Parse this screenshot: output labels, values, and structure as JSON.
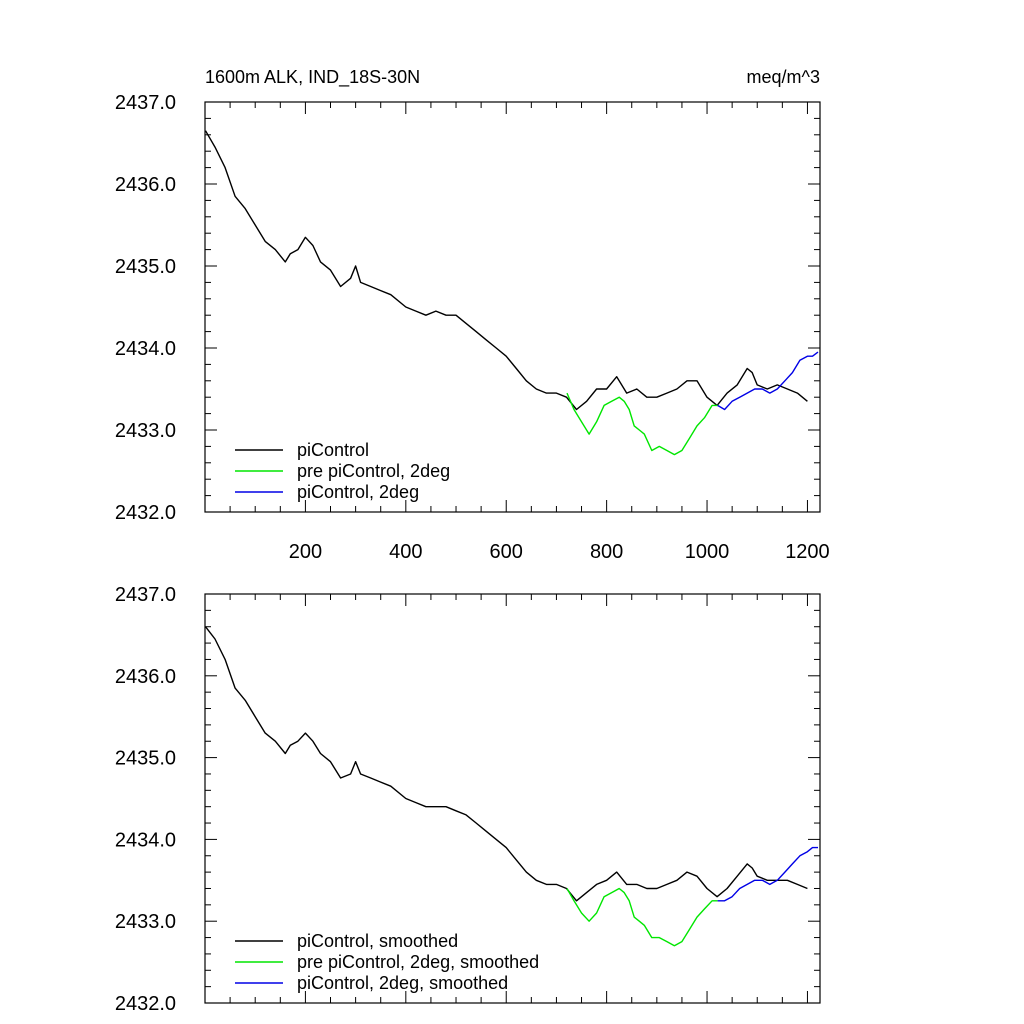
{
  "chart_data": [
    {
      "type": "line",
      "title": "1600m ALK, IND_18S-30N",
      "units": "meq/m^3",
      "xlim": [
        0,
        1225
      ],
      "ylim": [
        2432.0,
        2437.0
      ],
      "x_ticks": [
        200,
        400,
        600,
        800,
        1000,
        1200
      ],
      "x_tick_labels": [
        "200",
        "400",
        "600",
        "800",
        "1000",
        "1200"
      ],
      "y_ticks": [
        2432.0,
        2433.0,
        2434.0,
        2435.0,
        2436.0,
        2437.0
      ],
      "y_tick_labels": [
        "2432.0",
        "2433.0",
        "2434.0",
        "2435.0",
        "2436.0",
        "2437.0"
      ],
      "legend_position": "bottom-left",
      "series": [
        {
          "name": "piControl",
          "color": "#000000",
          "x": [
            1,
            20,
            40,
            60,
            80,
            100,
            120,
            140,
            160,
            170,
            185,
            200,
            215,
            230,
            250,
            270,
            290,
            300,
            310,
            330,
            350,
            370,
            400,
            420,
            440,
            460,
            480,
            500,
            520,
            540,
            560,
            580,
            600,
            620,
            640,
            660,
            680,
            700,
            720,
            740,
            760,
            780,
            800,
            820,
            840,
            860,
            880,
            900,
            920,
            940,
            960,
            980,
            1000,
            1020,
            1040,
            1060,
            1080,
            1090,
            1100,
            1120,
            1140,
            1160,
            1180,
            1200
          ],
          "values": [
            2436.65,
            2436.45,
            2436.2,
            2435.85,
            2435.7,
            2435.5,
            2435.3,
            2435.2,
            2435.05,
            2435.15,
            2435.2,
            2435.35,
            2435.25,
            2435.05,
            2434.95,
            2434.75,
            2434.85,
            2435.0,
            2434.8,
            2434.75,
            2434.7,
            2434.65,
            2434.5,
            2434.45,
            2434.4,
            2434.45,
            2434.4,
            2434.4,
            2434.3,
            2434.2,
            2434.1,
            2434.0,
            2433.9,
            2433.75,
            2433.6,
            2433.5,
            2433.45,
            2433.45,
            2433.4,
            2433.25,
            2433.35,
            2433.5,
            2433.5,
            2433.65,
            2433.45,
            2433.5,
            2433.4,
            2433.4,
            2433.45,
            2433.5,
            2433.6,
            2433.6,
            2433.4,
            2433.3,
            2433.45,
            2433.55,
            2433.75,
            2433.7,
            2433.55,
            2433.5,
            2433.55,
            2433.5,
            2433.45,
            2433.35
          ]
        },
        {
          "name": "pre piControl, 2deg",
          "color": "#00e600",
          "x": [
            721,
            735,
            750,
            765,
            780,
            795,
            810,
            825,
            835,
            845,
            855,
            865,
            875,
            890,
            905,
            920,
            935,
            950,
            965,
            980,
            995,
            1010,
            1021
          ],
          "values": [
            2433.45,
            2433.25,
            2433.1,
            2432.95,
            2433.1,
            2433.3,
            2433.35,
            2433.4,
            2433.35,
            2433.25,
            2433.05,
            2433.0,
            2432.95,
            2432.75,
            2432.8,
            2432.75,
            2432.7,
            2432.75,
            2432.9,
            2433.05,
            2433.15,
            2433.3,
            2433.3
          ]
        },
        {
          "name": "piControl, 2deg",
          "color": "#0000e6",
          "x": [
            1021,
            1035,
            1050,
            1065,
            1080,
            1095,
            1110,
            1125,
            1140,
            1155,
            1170,
            1185,
            1200,
            1210,
            1221
          ],
          "values": [
            2433.3,
            2433.25,
            2433.35,
            2433.4,
            2433.45,
            2433.5,
            2433.5,
            2433.45,
            2433.5,
            2433.6,
            2433.7,
            2433.85,
            2433.9,
            2433.9,
            2433.95
          ]
        }
      ]
    },
    {
      "type": "line",
      "xlim": [
        0,
        1225
      ],
      "ylim": [
        2432.0,
        2437.0
      ],
      "y_ticks": [
        2432.0,
        2433.0,
        2434.0,
        2435.0,
        2436.0,
        2437.0
      ],
      "y_tick_labels": [
        "2432.0",
        "2433.0",
        "2434.0",
        "2435.0",
        "2436.0",
        "2437.0"
      ],
      "legend_position": "bottom-left",
      "series": [
        {
          "name": "piControl, smoothed",
          "color": "#000000",
          "x": [
            1,
            20,
            40,
            60,
            80,
            100,
            120,
            140,
            160,
            170,
            185,
            200,
            215,
            230,
            250,
            270,
            290,
            300,
            310,
            330,
            350,
            370,
            400,
            420,
            440,
            460,
            480,
            500,
            520,
            540,
            560,
            580,
            600,
            620,
            640,
            660,
            680,
            700,
            720,
            740,
            760,
            780,
            800,
            820,
            840,
            860,
            880,
            900,
            920,
            940,
            960,
            980,
            1000,
            1020,
            1040,
            1060,
            1080,
            1090,
            1100,
            1120,
            1140,
            1160,
            1180,
            1200
          ],
          "values": [
            2436.6,
            2436.45,
            2436.2,
            2435.85,
            2435.7,
            2435.5,
            2435.3,
            2435.2,
            2435.05,
            2435.15,
            2435.2,
            2435.3,
            2435.2,
            2435.05,
            2434.95,
            2434.75,
            2434.8,
            2434.95,
            2434.8,
            2434.75,
            2434.7,
            2434.65,
            2434.5,
            2434.45,
            2434.4,
            2434.4,
            2434.4,
            2434.35,
            2434.3,
            2434.2,
            2434.1,
            2434.0,
            2433.9,
            2433.75,
            2433.6,
            2433.5,
            2433.45,
            2433.45,
            2433.4,
            2433.25,
            2433.35,
            2433.45,
            2433.5,
            2433.6,
            2433.45,
            2433.45,
            2433.4,
            2433.4,
            2433.45,
            2433.5,
            2433.6,
            2433.55,
            2433.4,
            2433.3,
            2433.4,
            2433.55,
            2433.7,
            2433.65,
            2433.55,
            2433.5,
            2433.5,
            2433.5,
            2433.45,
            2433.4
          ]
        },
        {
          "name": "pre piControl, 2deg, smoothed",
          "color": "#00e600",
          "x": [
            721,
            735,
            750,
            765,
            780,
            795,
            810,
            825,
            835,
            845,
            855,
            865,
            875,
            890,
            905,
            920,
            935,
            950,
            965,
            980,
            995,
            1010,
            1021
          ],
          "values": [
            2433.4,
            2433.25,
            2433.1,
            2433.0,
            2433.1,
            2433.3,
            2433.35,
            2433.4,
            2433.35,
            2433.25,
            2433.05,
            2433.0,
            2432.95,
            2432.8,
            2432.8,
            2432.75,
            2432.7,
            2432.75,
            2432.9,
            2433.05,
            2433.15,
            2433.25,
            2433.25
          ]
        },
        {
          "name": "piControl, 2deg, smoothed",
          "color": "#0000e6",
          "x": [
            1021,
            1035,
            1050,
            1065,
            1080,
            1095,
            1110,
            1125,
            1140,
            1155,
            1170,
            1185,
            1200,
            1210,
            1221
          ],
          "values": [
            2433.25,
            2433.25,
            2433.3,
            2433.4,
            2433.45,
            2433.5,
            2433.5,
            2433.45,
            2433.5,
            2433.6,
            2433.7,
            2433.8,
            2433.85,
            2433.9,
            2433.9
          ]
        }
      ]
    }
  ]
}
